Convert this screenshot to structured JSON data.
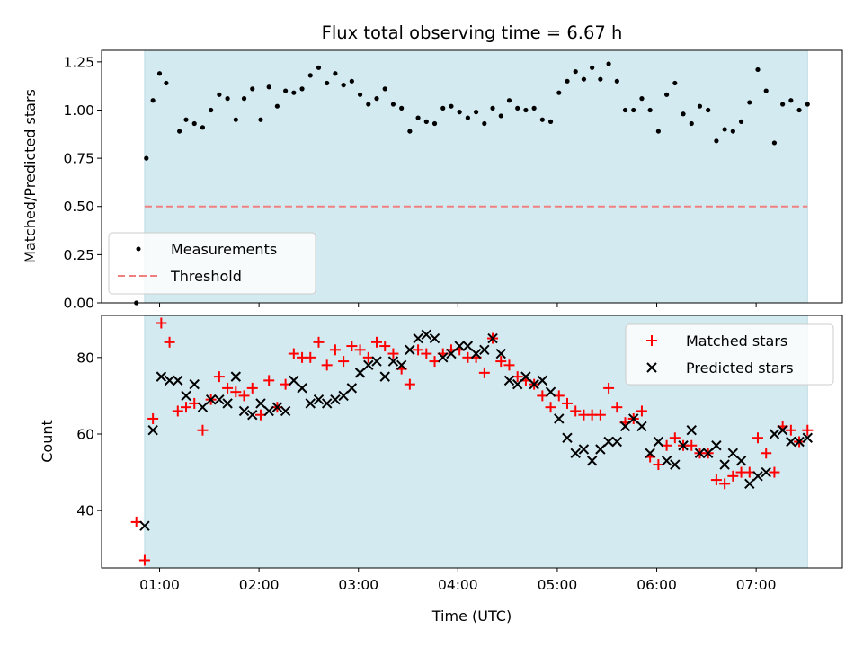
{
  "chart_data": [
    {
      "type": "scatter",
      "title": "Flux total observing time = 6.67 h",
      "xlabel": "",
      "ylabel": "Matched/Predicted stars",
      "xlim": [
        "00:25",
        "07:52"
      ],
      "ylim": [
        0,
        1.31
      ],
      "yticks": [
        "0.00",
        "0.25",
        "0.50",
        "0.75",
        "1.00",
        "1.25"
      ],
      "shaded_interval": {
        "start": "00:51",
        "end": "07:31",
        "color": "#d4eaf1"
      },
      "legend": {
        "position": "lower-left",
        "entries": [
          "Measurements",
          "Threshold"
        ]
      },
      "series": [
        {
          "name": "Measurements",
          "color": "#000000",
          "marker": "dot",
          "x": [
            "00:46",
            "00:52",
            "00:56",
            "01:00",
            "01:04",
            "01:12",
            "01:16",
            "01:21",
            "01:26",
            "01:31",
            "01:36",
            "01:41",
            "01:46",
            "01:51",
            "01:56",
            "02:01",
            "02:06",
            "02:11",
            "02:16",
            "02:21",
            "02:26",
            "02:31",
            "02:36",
            "02:41",
            "02:46",
            "02:51",
            "02:56",
            "03:01",
            "03:06",
            "03:11",
            "03:16",
            "03:21",
            "03:26",
            "03:31",
            "03:36",
            "03:41",
            "03:46",
            "03:51",
            "03:56",
            "04:01",
            "04:06",
            "04:11",
            "04:16",
            "04:21",
            "04:26",
            "04:31",
            "04:36",
            "04:41",
            "04:46",
            "04:51",
            "04:56",
            "05:01",
            "05:06",
            "05:11",
            "05:16",
            "05:21",
            "05:26",
            "05:31",
            "05:36",
            "05:41",
            "05:46",
            "05:51",
            "05:56",
            "06:01",
            "06:06",
            "06:11",
            "06:16",
            "06:21",
            "06:26",
            "06:31",
            "06:36",
            "06:41",
            "06:46",
            "06:51",
            "06:56",
            "07:01",
            "07:06",
            "07:11",
            "07:16",
            "07:21",
            "07:26",
            "07:31"
          ],
          "y": [
            0.0,
            0.75,
            1.05,
            1.19,
            1.14,
            0.89,
            0.95,
            0.93,
            0.91,
            1.0,
            1.08,
            1.06,
            0.95,
            1.06,
            1.11,
            0.95,
            1.12,
            1.02,
            1.1,
            1.09,
            1.11,
            1.18,
            1.22,
            1.14,
            1.19,
            1.13,
            1.15,
            1.08,
            1.03,
            1.06,
            1.11,
            1.03,
            1.01,
            0.89,
            0.96,
            0.94,
            0.93,
            1.01,
            1.02,
            0.99,
            0.96,
            0.99,
            0.93,
            1.01,
            0.97,
            1.05,
            1.01,
            1.0,
            1.01,
            0.95,
            0.94,
            1.09,
            1.15,
            1.2,
            1.16,
            1.22,
            1.16,
            1.24,
            1.15,
            1.0,
            1.0,
            1.06,
            1.0,
            0.89,
            1.08,
            1.14,
            0.98,
            0.93,
            1.02,
            1.0,
            0.84,
            0.9,
            0.89,
            0.94,
            1.04,
            1.21,
            1.1,
            0.83,
            1.03,
            1.05,
            1.0,
            1.03
          ]
        },
        {
          "name": "Threshold",
          "color": "#f08080",
          "style": "dashed",
          "x": [
            "00:51",
            "07:31"
          ],
          "y": [
            0.5,
            0.5
          ]
        }
      ]
    },
    {
      "type": "scatter",
      "title": "",
      "xlabel": "Time (UTC)",
      "ylabel": "Count",
      "xlim": [
        "00:25",
        "07:52"
      ],
      "ylim": [
        25,
        91
      ],
      "yticks": [
        "40",
        "60",
        "80"
      ],
      "xticks": [
        "01:00",
        "02:00",
        "03:00",
        "04:00",
        "05:00",
        "06:00",
        "07:00"
      ],
      "shaded_interval": {
        "start": "00:51",
        "end": "07:31",
        "color": "#d4eaf1"
      },
      "legend": {
        "position": "top-right",
        "entries": [
          "Matched stars",
          "Predicted stars"
        ]
      },
      "series": [
        {
          "name": "Matched stars",
          "color": "#ff0000",
          "marker": "plus",
          "x": [
            "00:46",
            "00:51",
            "00:56",
            "01:01",
            "01:06",
            "01:11",
            "01:16",
            "01:21",
            "01:26",
            "01:31",
            "01:36",
            "01:41",
            "01:46",
            "01:51",
            "01:56",
            "02:01",
            "02:06",
            "02:11",
            "02:16",
            "02:21",
            "02:26",
            "02:31",
            "02:36",
            "02:41",
            "02:46",
            "02:51",
            "02:56",
            "03:01",
            "03:06",
            "03:11",
            "03:16",
            "03:21",
            "03:26",
            "03:31",
            "03:36",
            "03:41",
            "03:46",
            "03:51",
            "03:56",
            "04:01",
            "04:06",
            "04:11",
            "04:16",
            "04:21",
            "04:26",
            "04:31",
            "04:36",
            "04:41",
            "04:46",
            "04:51",
            "04:56",
            "05:01",
            "05:06",
            "05:11",
            "05:16",
            "05:21",
            "05:26",
            "05:31",
            "05:36",
            "05:41",
            "05:46",
            "05:51",
            "05:56",
            "06:01",
            "06:06",
            "06:11",
            "06:16",
            "06:21",
            "06:26",
            "06:31",
            "06:36",
            "06:41",
            "06:46",
            "06:51",
            "06:56",
            "07:01",
            "07:06",
            "07:11",
            "07:16",
            "07:21",
            "07:26",
            "07:31"
          ],
          "y": [
            37,
            27,
            64,
            89,
            84,
            66,
            67,
            68,
            61,
            69,
            75,
            72,
            71,
            70,
            72,
            65,
            74,
            67,
            73,
            81,
            80,
            80,
            84,
            78,
            82,
            79,
            83,
            82,
            80,
            84,
            83,
            81,
            77,
            73,
            82,
            81,
            79,
            81,
            82,
            82,
            80,
            80,
            76,
            85,
            79,
            78,
            75,
            74,
            73,
            70,
            67,
            70,
            68,
            66,
            65,
            65,
            65,
            72,
            67,
            63,
            64,
            66,
            54,
            52,
            57,
            59,
            57,
            57,
            55,
            55,
            48,
            47,
            49,
            50,
            50,
            59,
            55,
            50,
            62,
            61,
            58,
            61
          ]
        },
        {
          "name": "Predicted stars",
          "color": "#000000",
          "marker": "x",
          "x": [
            "00:51",
            "00:56",
            "01:01",
            "01:06",
            "01:11",
            "01:16",
            "01:21",
            "01:26",
            "01:31",
            "01:36",
            "01:41",
            "01:46",
            "01:51",
            "01:56",
            "02:01",
            "02:06",
            "02:11",
            "02:16",
            "02:21",
            "02:26",
            "02:31",
            "02:36",
            "02:41",
            "02:46",
            "02:51",
            "02:56",
            "03:01",
            "03:06",
            "03:11",
            "03:16",
            "03:21",
            "03:26",
            "03:31",
            "03:36",
            "03:41",
            "03:46",
            "03:51",
            "03:56",
            "04:01",
            "04:06",
            "04:11",
            "04:16",
            "04:21",
            "04:26",
            "04:31",
            "04:36",
            "04:41",
            "04:46",
            "04:51",
            "04:56",
            "05:01",
            "05:06",
            "05:11",
            "05:16",
            "05:21",
            "05:26",
            "05:31",
            "05:36",
            "05:41",
            "05:46",
            "05:51",
            "05:56",
            "06:01",
            "06:06",
            "06:11",
            "06:16",
            "06:21",
            "06:26",
            "06:31",
            "06:36",
            "06:41",
            "06:46",
            "06:51",
            "06:56",
            "07:01",
            "07:06",
            "07:11",
            "07:16",
            "07:21",
            "07:26",
            "07:31"
          ],
          "y": [
            36,
            61,
            75,
            74,
            74,
            70,
            73,
            67,
            69,
            69,
            68,
            75,
            66,
            65,
            68,
            66,
            67,
            66,
            74,
            72,
            68,
            69,
            68,
            69,
            70,
            72,
            76,
            78,
            79,
            75,
            79,
            78,
            82,
            85,
            86,
            85,
            80,
            81,
            83,
            83,
            81,
            82,
            85,
            81,
            74,
            73,
            75,
            73,
            74,
            71,
            64,
            59,
            55,
            56,
            53,
            56,
            58,
            58,
            62,
            64,
            62,
            55,
            58,
            53,
            52,
            57,
            61,
            55,
            55,
            57,
            52,
            55,
            53,
            47,
            49,
            50,
            60,
            61,
            58,
            58,
            59
          ]
        }
      ]
    }
  ]
}
